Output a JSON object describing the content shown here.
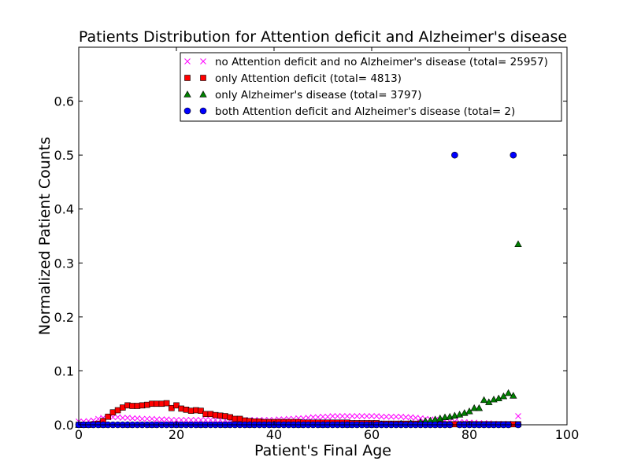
{
  "chart_data": {
    "type": "scatter",
    "title": "Patients Distribution for Attention deficit and Alzheimer's disease",
    "xlabel": "Patient's Final Age",
    "ylabel": "Normalized Patient Counts",
    "xlim": [
      0,
      100
    ],
    "ylim": [
      0,
      0.7
    ],
    "xticks": [
      "0",
      "20",
      "40",
      "60",
      "80",
      "100"
    ],
    "yticks": [
      "0.0",
      "0.1",
      "0.2",
      "0.3",
      "0.4",
      "0.5",
      "0.6"
    ],
    "legend_position": "top-right",
    "grid": false,
    "series": [
      {
        "name": "no Attention deficit and no Alzheimer's disease (total= 25957)",
        "marker": "x",
        "color": "#ff00ff",
        "x": [
          0,
          1,
          2,
          3,
          4,
          5,
          6,
          7,
          8,
          9,
          10,
          11,
          12,
          13,
          14,
          15,
          16,
          17,
          18,
          19,
          20,
          21,
          22,
          23,
          24,
          25,
          26,
          27,
          28,
          29,
          30,
          31,
          32,
          33,
          34,
          35,
          36,
          37,
          38,
          39,
          40,
          41,
          42,
          43,
          44,
          45,
          46,
          47,
          48,
          49,
          50,
          51,
          52,
          53,
          54,
          55,
          56,
          57,
          58,
          59,
          60,
          61,
          62,
          63,
          64,
          65,
          66,
          67,
          68,
          69,
          70,
          71,
          72,
          73,
          74,
          75,
          76,
          77,
          78,
          79,
          80,
          81,
          82,
          83,
          84,
          85,
          86,
          87,
          88,
          89,
          90
        ],
        "y": [
          0.006,
          0.006,
          0.007,
          0.008,
          0.011,
          0.013,
          0.014,
          0.014,
          0.014,
          0.013,
          0.013,
          0.012,
          0.012,
          0.011,
          0.011,
          0.011,
          0.01,
          0.01,
          0.01,
          0.009,
          0.009,
          0.009,
          0.009,
          0.009,
          0.009,
          0.009,
          0.009,
          0.009,
          0.009,
          0.009,
          0.009,
          0.009,
          0.009,
          0.009,
          0.009,
          0.009,
          0.009,
          0.009,
          0.009,
          0.009,
          0.009,
          0.01,
          0.01,
          0.011,
          0.011,
          0.012,
          0.012,
          0.013,
          0.014,
          0.014,
          0.015,
          0.015,
          0.016,
          0.016,
          0.016,
          0.016,
          0.016,
          0.016,
          0.016,
          0.016,
          0.016,
          0.016,
          0.015,
          0.015,
          0.015,
          0.015,
          0.015,
          0.014,
          0.014,
          0.013,
          0.012,
          0.011,
          0.01,
          0.009,
          0.008,
          0.007,
          0.006,
          0.006,
          0.005,
          0.005,
          0.004,
          0.004,
          0.003,
          0.003,
          0.003,
          0.002,
          0.002,
          0.002,
          0.002,
          0.002,
          0.016
        ]
      },
      {
        "name": "only Attention deficit (total= 4813)",
        "marker": "s",
        "color": "#ff0000",
        "x": [
          0,
          1,
          2,
          3,
          4,
          5,
          6,
          7,
          8,
          9,
          10,
          11,
          12,
          13,
          14,
          15,
          16,
          17,
          18,
          19,
          20,
          21,
          22,
          23,
          24,
          25,
          26,
          27,
          28,
          29,
          30,
          31,
          32,
          33,
          34,
          35,
          36,
          37,
          38,
          39,
          40,
          41,
          42,
          43,
          44,
          45,
          46,
          47,
          48,
          49,
          50,
          51,
          52,
          53,
          54,
          55,
          56,
          57,
          58,
          59,
          60,
          61,
          62,
          63,
          64,
          65,
          66,
          67,
          68,
          69,
          70,
          71,
          72,
          73,
          74,
          75,
          76,
          77,
          78,
          79,
          80,
          81,
          82,
          83,
          84,
          85,
          86,
          87,
          88,
          89,
          90
        ],
        "y": [
          0.0,
          0.0,
          0.0,
          0.001,
          0.002,
          0.007,
          0.015,
          0.023,
          0.027,
          0.032,
          0.036,
          0.035,
          0.035,
          0.036,
          0.037,
          0.039,
          0.039,
          0.039,
          0.04,
          0.031,
          0.036,
          0.03,
          0.028,
          0.026,
          0.027,
          0.026,
          0.02,
          0.02,
          0.018,
          0.017,
          0.016,
          0.014,
          0.011,
          0.011,
          0.008,
          0.007,
          0.006,
          0.006,
          0.005,
          0.005,
          0.005,
          0.005,
          0.005,
          0.005,
          0.005,
          0.005,
          0.004,
          0.004,
          0.004,
          0.004,
          0.004,
          0.004,
          0.004,
          0.004,
          0.004,
          0.004,
          0.003,
          0.003,
          0.003,
          0.003,
          0.003,
          0.003,
          0.002,
          0.002,
          0.002,
          0.002,
          0.002,
          0.002,
          0.002,
          0.002,
          0.002,
          0.001,
          0.001,
          0.001,
          0.001,
          0.001,
          0.001,
          0.001,
          0.001,
          0.001,
          0.001,
          0.001,
          0.001,
          0.001,
          0.001,
          0.001,
          0.001,
          0.001,
          0.001,
          0.001,
          0.001
        ]
      },
      {
        "name": "only Alzheimer's disease (total= 3797)",
        "marker": "^",
        "color": "#008000",
        "x": [
          0,
          5,
          10,
          15,
          20,
          25,
          30,
          35,
          40,
          45,
          50,
          55,
          60,
          62,
          64,
          66,
          68,
          70,
          71,
          72,
          73,
          74,
          75,
          76,
          77,
          78,
          79,
          80,
          81,
          82,
          83,
          84,
          85,
          86,
          87,
          88,
          89,
          90
        ],
        "y": [
          0.0,
          0.0,
          0.0,
          0.0,
          0.0,
          0.0,
          0.0,
          0.0,
          0.0,
          0.0,
          0.0,
          0.0,
          0.0,
          0.001,
          0.001,
          0.002,
          0.003,
          0.005,
          0.007,
          0.008,
          0.01,
          0.012,
          0.014,
          0.015,
          0.017,
          0.019,
          0.022,
          0.025,
          0.031,
          0.031,
          0.046,
          0.042,
          0.047,
          0.049,
          0.053,
          0.059,
          0.054,
          0.335
        ]
      },
      {
        "name": "both Attention deficit and Alzheimer's disease (total= 2)",
        "marker": "o",
        "color": "#0000ff",
        "x": [
          0,
          1,
          2,
          3,
          4,
          5,
          6,
          7,
          8,
          9,
          10,
          11,
          12,
          13,
          14,
          15,
          16,
          17,
          18,
          19,
          20,
          21,
          22,
          23,
          24,
          25,
          26,
          27,
          28,
          29,
          30,
          31,
          32,
          33,
          34,
          35,
          36,
          37,
          38,
          39,
          40,
          41,
          42,
          43,
          44,
          45,
          46,
          47,
          48,
          49,
          50,
          51,
          52,
          53,
          54,
          55,
          56,
          57,
          58,
          59,
          60,
          61,
          62,
          63,
          64,
          65,
          66,
          67,
          68,
          69,
          70,
          71,
          72,
          73,
          74,
          75,
          76,
          77,
          78,
          79,
          80,
          81,
          82,
          83,
          84,
          85,
          86,
          87,
          88,
          89,
          90
        ],
        "y": [
          0,
          0,
          0,
          0,
          0,
          0,
          0,
          0,
          0,
          0,
          0,
          0,
          0,
          0,
          0,
          0,
          0,
          0,
          0,
          0,
          0,
          0,
          0,
          0,
          0,
          0,
          0,
          0,
          0,
          0,
          0,
          0,
          0,
          0,
          0,
          0,
          0,
          0,
          0,
          0,
          0,
          0,
          0,
          0,
          0,
          0,
          0,
          0,
          0,
          0,
          0,
          0,
          0,
          0,
          0,
          0,
          0,
          0,
          0,
          0,
          0,
          0,
          0,
          0,
          0,
          0,
          0,
          0,
          0,
          0,
          0,
          0,
          0,
          0,
          0,
          0,
          0,
          0.5,
          0,
          0,
          0,
          0,
          0,
          0,
          0,
          0,
          0,
          0,
          0,
          0.5,
          0
        ]
      }
    ]
  }
}
